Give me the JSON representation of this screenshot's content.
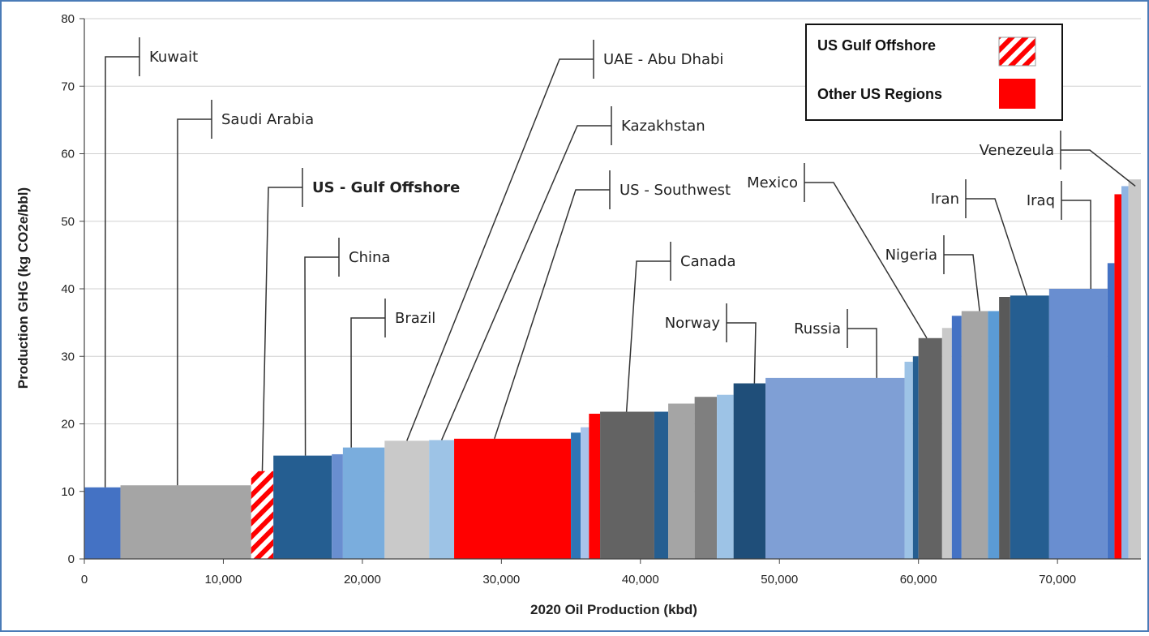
{
  "chart_data": {
    "type": "bar",
    "subtype": "variable-width cumulative supply curve",
    "xlabel": "2020 Oil Production (kbd)",
    "ylabel": "Production GHG (kg CO2e/bbl)",
    "xlim": [
      0,
      76000
    ],
    "ylim": [
      0,
      80
    ],
    "x_ticks": [
      0,
      10000,
      20000,
      30000,
      40000,
      50000,
      60000,
      70000
    ],
    "x_tick_labels": [
      "0",
      "10,000",
      "20,000",
      "30,000",
      "40,000",
      "50,000",
      "60,000",
      "70,000"
    ],
    "y_ticks": [
      0,
      10,
      20,
      30,
      40,
      50,
      60,
      70,
      80
    ],
    "y_tick_labels": [
      "0",
      "10",
      "20",
      "30",
      "40",
      "50",
      "60",
      "70",
      "80"
    ],
    "grid": "horizontal",
    "legend_position": "top-right",
    "legend": [
      {
        "label": "US Gulf Offshore",
        "color": "#ff0000",
        "pattern": "hatched"
      },
      {
        "label": "Other US Regions",
        "color": "#ff0000",
        "pattern": "solid"
      }
    ],
    "bars": [
      {
        "x0": 0,
        "x1": 2600,
        "y": 10.6,
        "color": "#4472c4"
      },
      {
        "x0": 2600,
        "x1": 12000,
        "y": 10.9,
        "color": "#a5a5a5"
      },
      {
        "x0": 12000,
        "x1": 13600,
        "y": 13.0,
        "color": "#ff0000",
        "pattern": "hatched"
      },
      {
        "x0": 13600,
        "x1": 17800,
        "y": 15.3,
        "color": "#255e91"
      },
      {
        "x0": 17800,
        "x1": 18600,
        "y": 15.5,
        "color": "#698ed0"
      },
      {
        "x0": 18600,
        "x1": 21600,
        "y": 16.5,
        "color": "#7aaddd"
      },
      {
        "x0": 21600,
        "x1": 24800,
        "y": 17.5,
        "color": "#c9c9c9"
      },
      {
        "x0": 24800,
        "x1": 26600,
        "y": 17.6,
        "color": "#9dc3e6"
      },
      {
        "x0": 26600,
        "x1": 35000,
        "y": 17.8,
        "color": "#ff0000"
      },
      {
        "x0": 35000,
        "x1": 35700,
        "y": 18.7,
        "color": "#2e75b6"
      },
      {
        "x0": 35700,
        "x1": 36300,
        "y": 19.5,
        "color": "#a9c4eb"
      },
      {
        "x0": 36300,
        "x1": 37100,
        "y": 21.5,
        "color": "#ff0000"
      },
      {
        "x0": 37100,
        "x1": 41000,
        "y": 21.8,
        "color": "#636363"
      },
      {
        "x0": 41000,
        "x1": 42000,
        "y": 21.8,
        "color": "#255e91"
      },
      {
        "x0": 42000,
        "x1": 43900,
        "y": 23.0,
        "color": "#a5a5a5"
      },
      {
        "x0": 43900,
        "x1": 45500,
        "y": 24.0,
        "color": "#7f7f7f"
      },
      {
        "x0": 45500,
        "x1": 46700,
        "y": 24.3,
        "color": "#9dc3e6"
      },
      {
        "x0": 46700,
        "x1": 49000,
        "y": 26.0,
        "color": "#1f4e79"
      },
      {
        "x0": 49000,
        "x1": 59000,
        "y": 26.8,
        "color": "#7f9fd5"
      },
      {
        "x0": 59000,
        "x1": 59600,
        "y": 29.2,
        "color": "#9dc3e6"
      },
      {
        "x0": 59600,
        "x1": 60000,
        "y": 30.0,
        "color": "#255e91"
      },
      {
        "x0": 60000,
        "x1": 61700,
        "y": 32.7,
        "color": "#636363"
      },
      {
        "x0": 61700,
        "x1": 62400,
        "y": 34.2,
        "color": "#c9c9c9"
      },
      {
        "x0": 62400,
        "x1": 63100,
        "y": 36.0,
        "color": "#4472c4"
      },
      {
        "x0": 63100,
        "x1": 65000,
        "y": 36.7,
        "color": "#a5a5a5"
      },
      {
        "x0": 65000,
        "x1": 65800,
        "y": 36.7,
        "color": "#5b9bd5"
      },
      {
        "x0": 65800,
        "x1": 66600,
        "y": 38.8,
        "color": "#595959"
      },
      {
        "x0": 66600,
        "x1": 69400,
        "y": 39.0,
        "color": "#255e91"
      },
      {
        "x0": 69400,
        "x1": 73600,
        "y": 40.0,
        "color": "#698ed0"
      },
      {
        "x0": 73600,
        "x1": 74100,
        "y": 43.8,
        "color": "#4472c4"
      },
      {
        "x0": 74100,
        "x1": 74600,
        "y": 54.0,
        "color": "#ff0000"
      },
      {
        "x0": 74600,
        "x1": 75100,
        "y": 55.2,
        "color": "#8fb4e3"
      },
      {
        "x0": 75100,
        "x1": 76000,
        "y": 56.2,
        "color": "#c9c9c9"
      }
    ],
    "annotations": [
      {
        "label": "Kuwait",
        "bold": false,
        "x": 1500,
        "y": 10.6
      },
      {
        "label": "Saudi Arabia",
        "bold": false,
        "x": 6700,
        "y": 10.9
      },
      {
        "label": "US - Gulf Offshore",
        "bold": true,
        "x": 12800,
        "y": 13.0
      },
      {
        "label": "China",
        "bold": false,
        "x": 15900,
        "y": 15.3
      },
      {
        "label": "Brazil",
        "bold": false,
        "x": 19200,
        "y": 16.5
      },
      {
        "label": "UAE - Abu Dhabi",
        "bold": false,
        "x": 23200,
        "y": 17.5
      },
      {
        "label": "Kazakhstan",
        "bold": false,
        "x": 25700,
        "y": 17.6
      },
      {
        "label": "US - Southwest",
        "bold": false,
        "x": 29500,
        "y": 17.8
      },
      {
        "label": "Canada",
        "bold": false,
        "x": 39000,
        "y": 21.8
      },
      {
        "label": "Norway",
        "bold": false,
        "x": 48200,
        "y": 26.0
      },
      {
        "label": "Russia",
        "bold": false,
        "x": 57000,
        "y": 26.8
      },
      {
        "label": "Mexico",
        "bold": false,
        "x": 60600,
        "y": 32.7
      },
      {
        "label": "Nigeria",
        "bold": false,
        "x": 64400,
        "y": 36.7
      },
      {
        "label": "Iran",
        "bold": false,
        "x": 67800,
        "y": 39.0
      },
      {
        "label": "Iraq",
        "bold": false,
        "x": 72400,
        "y": 40.0
      },
      {
        "label": "Venezeula",
        "bold": false,
        "x": 75600,
        "y": 55.2
      }
    ]
  }
}
